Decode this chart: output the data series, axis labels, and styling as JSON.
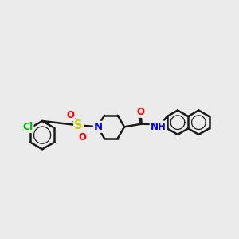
{
  "background_color": "#ebebeb",
  "bond_color": "#1a1a1a",
  "bond_width": 1.8,
  "atom_colors": {
    "Cl": "#00bb00",
    "S": "#cccc00",
    "O": "#ff0000",
    "N": "#0000ee",
    "C": "#1a1a1a",
    "H": "#1a1a1a"
  },
  "font_size": 8.5,
  "figsize": [
    3.0,
    3.0
  ],
  "dpi": 100
}
